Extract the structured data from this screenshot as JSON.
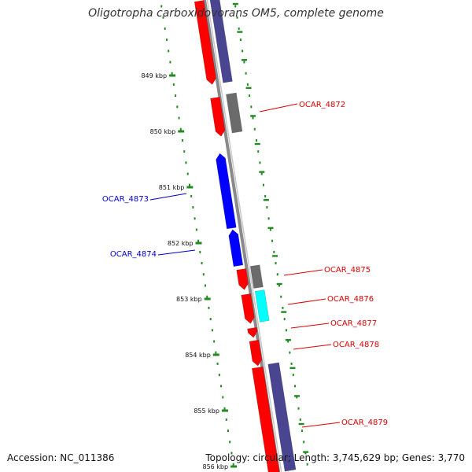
{
  "header": {
    "title": "Oligotropha carboxidovorans OM5, complete genome"
  },
  "footer": {
    "accession": "Accession: NC_011386",
    "summary": "Topology: circular; Length: 3,745,629 bp; Genes: 3,770"
  },
  "colors": {
    "backbone": "#8a8a8a",
    "forward_cds": "#ff0000",
    "reverse_cds": "#0000ff",
    "gene_purple": "#4a4590",
    "gene_gray": "#6b6b6b",
    "gene_cyan": "#00ffff",
    "tick_green": "#228b22",
    "label_red": "#dd0000",
    "label_blue": "#0000cc"
  },
  "scale": {
    "ticks": [
      {
        "label": "849 kbp",
        "value": 849
      },
      {
        "label": "850 kbp",
        "value": 850
      },
      {
        "label": "851 kbp",
        "value": 851
      },
      {
        "label": "852 kbp",
        "value": 852
      },
      {
        "label": "853 kbp",
        "value": 853
      },
      {
        "label": "854 kbp",
        "value": 854
      },
      {
        "label": "855 kbp",
        "value": 855
      },
      {
        "label": "856 kbp",
        "value": 856
      }
    ]
  },
  "genes": [
    {
      "label": "OCAR_4872",
      "strand": "forward"
    },
    {
      "label": "OCAR_4873",
      "strand": "reverse"
    },
    {
      "label": "OCAR_4874",
      "strand": "reverse"
    },
    {
      "label": "OCAR_4875",
      "strand": "forward"
    },
    {
      "label": "OCAR_4876",
      "strand": "forward"
    },
    {
      "label": "OCAR_4877",
      "strand": "forward"
    },
    {
      "label": "OCAR_4878",
      "strand": "forward"
    },
    {
      "label": "OCAR_4879",
      "strand": "forward"
    }
  ]
}
